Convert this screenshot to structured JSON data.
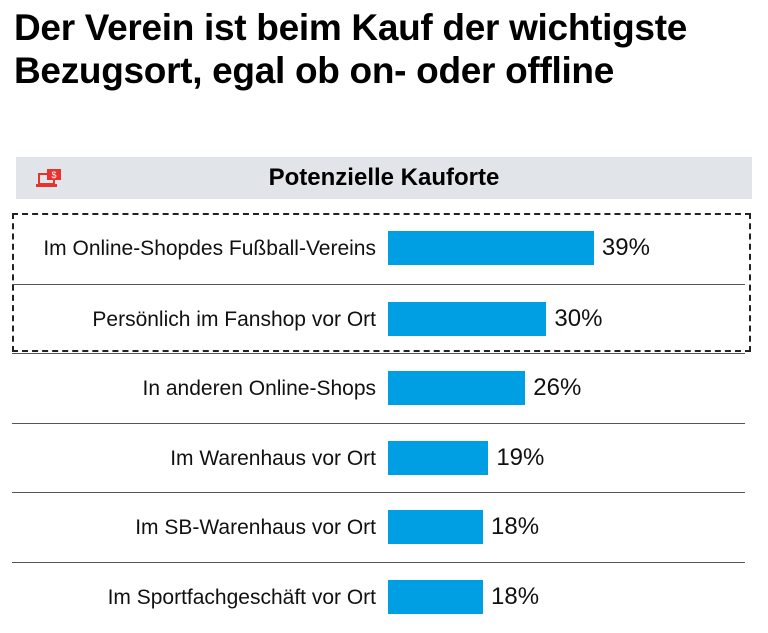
{
  "title": "Der Verein ist beim Kauf der wichtigste Bezugsort, egal ob on- oder offline",
  "header": {
    "label": "Potenzielle Kauforte",
    "icon": "laptop-dollar-icon",
    "icon_color": "#e8322d"
  },
  "chart_data": {
    "type": "bar",
    "orientation": "horizontal",
    "title": "Potenzielle Kauforte",
    "categories": [
      "Im Online-Shop des Fußball-Vereins",
      "Persönlich im Fanshop vor Ort",
      "In anderen Online-Shops",
      "Im Warenhaus vor Ort",
      "Im SB-Warenhaus vor Ort",
      "Im Sportfachgeschäft vor Ort"
    ],
    "labels_display": [
      [
        "Im Online-Shop",
        "des Fußball-Vereins"
      ],
      [
        "Persönlich im Fanshop vor Ort"
      ],
      [
        "In anderen Online-Shops"
      ],
      [
        "Im Warenhaus vor Ort"
      ],
      [
        "Im SB-Warenhaus vor Ort"
      ],
      [
        "Im Sportfachgeschäft vor Ort"
      ]
    ],
    "values": [
      39,
      30,
      26,
      19,
      18,
      18
    ],
    "value_labels": [
      "39%",
      "30%",
      "26%",
      "19%",
      "18%",
      "18%"
    ],
    "unit": "%",
    "bar_color": "#009fe3",
    "highlighted": [
      0,
      1
    ],
    "grid": false
  }
}
